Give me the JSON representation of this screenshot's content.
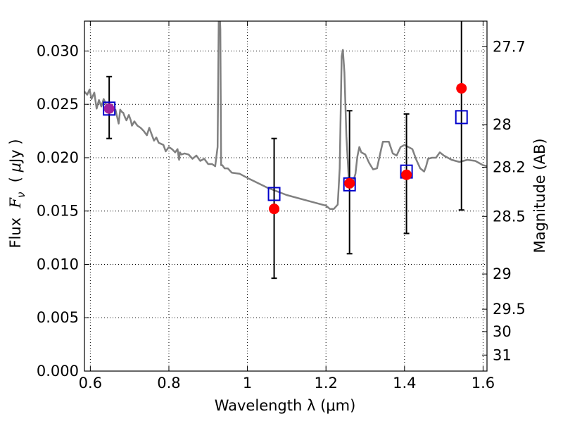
{
  "chart_data": {
    "type": "scatter",
    "xlabel": "Wavelength  λ (μm)",
    "ylabel_left": "Flux  F_ν  ( μJy )",
    "ylabel_left_parts": {
      "prefix": "Flux  ",
      "symbol": "F",
      "subscript": "ν",
      "open": "  ( ",
      "unit_symbol": "μ",
      "unit": "Jy )"
    },
    "ylabel_right": "Magnitude (AB)",
    "xlim": [
      0.585,
      1.61
    ],
    "ylim": [
      0.0,
      0.0328
    ],
    "grid": true,
    "x_ticks": [
      {
        "value": 0.6,
        "label": "0.6"
      },
      {
        "value": 0.8,
        "label": "0.8"
      },
      {
        "value": 1.0,
        "label": "1"
      },
      {
        "value": 1.2,
        "label": "1.2"
      },
      {
        "value": 1.4,
        "label": "1.4"
      },
      {
        "value": 1.6,
        "label": "1.6"
      }
    ],
    "y_ticks": [
      {
        "value": 0.0,
        "label": "0.000"
      },
      {
        "value": 0.005,
        "label": "0.005"
      },
      {
        "value": 0.01,
        "label": "0.010"
      },
      {
        "value": 0.015,
        "label": "0.015"
      },
      {
        "value": 0.02,
        "label": "0.020"
      },
      {
        "value": 0.025,
        "label": "0.025"
      },
      {
        "value": 0.03,
        "label": "0.030"
      }
    ],
    "right_ticks": [
      {
        "value": 27.7,
        "label": "27.7"
      },
      {
        "value": 28.0,
        "label": "28"
      },
      {
        "value": 28.2,
        "label": "28.2"
      },
      {
        "value": 28.5,
        "label": "28.5"
      },
      {
        "value": 29.0,
        "label": "29"
      },
      {
        "value": 29.5,
        "label": "29.5"
      },
      {
        "value": 30.0,
        "label": "30"
      },
      {
        "value": 31.0,
        "label": "31"
      }
    ],
    "right_tick_flux": [
      0.0304,
      0.0231,
      0.0191,
      0.0145,
      0.0091,
      0.0058,
      0.0037,
      0.0015
    ],
    "series": [
      {
        "kind": "model-spectrum",
        "color": "#808080",
        "x": [
          0.585,
          0.592,
          0.598,
          0.603,
          0.61,
          0.616,
          0.622,
          0.628,
          0.634,
          0.64,
          0.648,
          0.656,
          0.664,
          0.672,
          0.676,
          0.68,
          0.684,
          0.688,
          0.692,
          0.698,
          0.703,
          0.706,
          0.712,
          0.72,
          0.728,
          0.736,
          0.744,
          0.75,
          0.756,
          0.762,
          0.768,
          0.774,
          0.78,
          0.786,
          0.792,
          0.8,
          0.808,
          0.816,
          0.822,
          0.826,
          0.828,
          0.832,
          0.84,
          0.85,
          0.86,
          0.87,
          0.88,
          0.89,
          0.9,
          0.91,
          0.918,
          0.924,
          0.927,
          0.929,
          0.931,
          0.933,
          0.936,
          0.942,
          0.95,
          0.96,
          0.98,
          1.0,
          1.05,
          1.1,
          1.15,
          1.18,
          1.2,
          1.21,
          1.22,
          1.23,
          1.235,
          1.24,
          1.243,
          1.247,
          1.252,
          1.258,
          1.265,
          1.275,
          1.28,
          1.285,
          1.29,
          1.3,
          1.31,
          1.32,
          1.33,
          1.34,
          1.345,
          1.35,
          1.36,
          1.37,
          1.38,
          1.39,
          1.4,
          1.42,
          1.43,
          1.44,
          1.45,
          1.455,
          1.46,
          1.47,
          1.48,
          1.49,
          1.5,
          1.52,
          1.54,
          1.56,
          1.58,
          1.6,
          1.61
        ],
        "y": [
          0.0262,
          0.0259,
          0.0264,
          0.0255,
          0.0261,
          0.0246,
          0.0254,
          0.0248,
          0.0255,
          0.025,
          0.0248,
          0.0246,
          0.0245,
          0.0232,
          0.0245,
          0.0243,
          0.0242,
          0.0238,
          0.0235,
          0.024,
          0.0235,
          0.023,
          0.0234,
          0.023,
          0.0228,
          0.0225,
          0.0221,
          0.0228,
          0.0222,
          0.0216,
          0.0219,
          0.0214,
          0.0213,
          0.0212,
          0.0206,
          0.021,
          0.0208,
          0.0205,
          0.0208,
          0.0198,
          0.0205,
          0.0203,
          0.0204,
          0.0203,
          0.0199,
          0.0202,
          0.0197,
          0.0199,
          0.0194,
          0.0194,
          0.0192,
          0.021,
          0.0335,
          0.034,
          0.032,
          0.0193,
          0.0193,
          0.019,
          0.019,
          0.0186,
          0.0185,
          0.0181,
          0.0172,
          0.0165,
          0.016,
          0.0157,
          0.0155,
          0.0152,
          0.0152,
          0.0156,
          0.019,
          0.0295,
          0.0301,
          0.028,
          0.022,
          0.018,
          0.0172,
          0.0185,
          0.0201,
          0.021,
          0.0205,
          0.0203,
          0.0195,
          0.0189,
          0.019,
          0.0207,
          0.0215,
          0.0215,
          0.0215,
          0.0204,
          0.0202,
          0.021,
          0.0212,
          0.0208,
          0.0198,
          0.019,
          0.0187,
          0.0192,
          0.0199,
          0.02,
          0.02,
          0.0205,
          0.0202,
          0.0198,
          0.0196,
          0.0198,
          0.0197,
          0.0193,
          0.0192
        ],
        "line_width": 2.5
      },
      {
        "kind": "model-photometry",
        "color": "#0000cc",
        "marker": "open-square",
        "x": [
          0.648,
          1.068,
          1.26,
          1.405,
          1.545
        ],
        "y": [
          0.0246,
          0.0166,
          0.0175,
          0.0187,
          0.0238
        ]
      },
      {
        "kind": "observed-photometry",
        "color": "#ff0000",
        "marker": "filled-circle",
        "x": [
          0.648,
          1.068,
          1.26,
          1.405,
          1.545
        ],
        "y": [
          0.0246,
          0.0152,
          0.0176,
          0.0184,
          0.0265
        ],
        "yerr_low": [
          0.0218,
          0.0087,
          0.011,
          0.0129,
          0.0151
        ],
        "yerr_high": [
          0.0276,
          0.0218,
          0.0244,
          0.0241,
          0.033
        ]
      }
    ],
    "overlap_color": "#a020a0"
  }
}
